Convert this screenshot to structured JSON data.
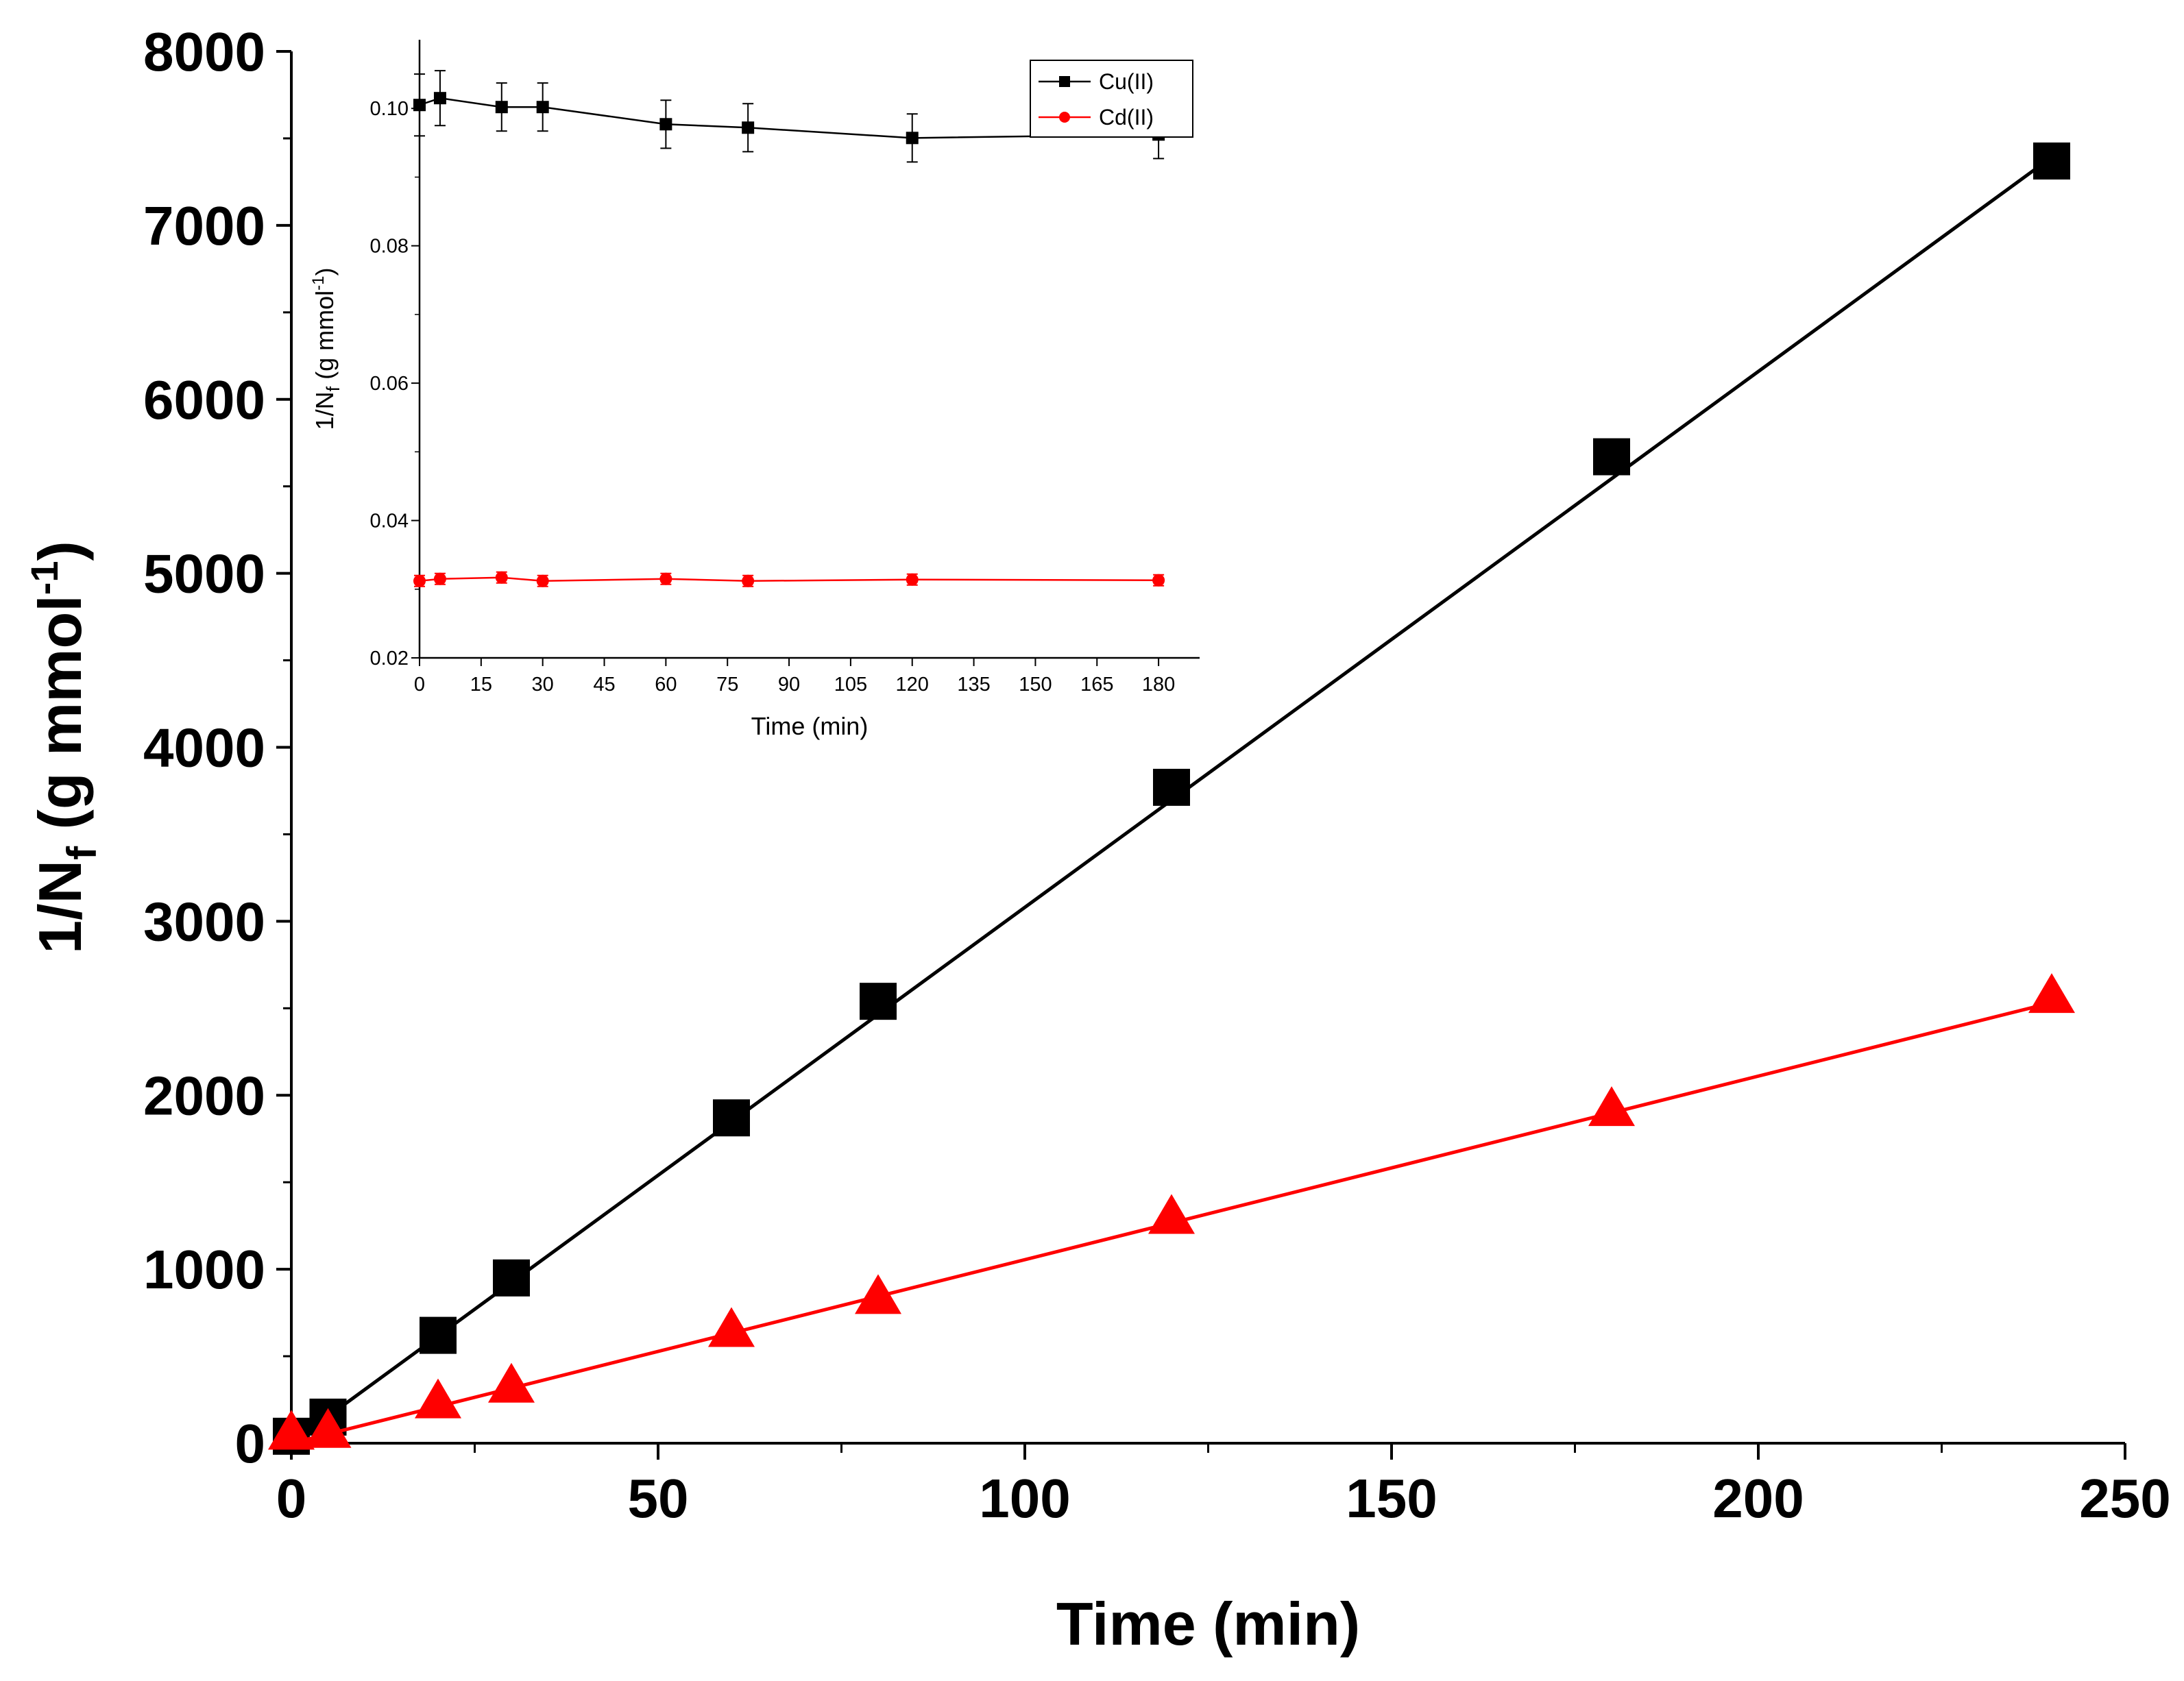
{
  "chart_data": [
    {
      "id": "main",
      "type": "scatter",
      "title": "",
      "xlabel": "Time (min)",
      "ylabel_main": "1/N",
      "ylabel_sub": "f",
      "ylabel_units": " (g mmol",
      "ylabel_sup": "-1",
      "ylabel_close": ")",
      "xlim": [
        0,
        250
      ],
      "ylim": [
        0,
        8000
      ],
      "xticks": [
        0,
        50,
        100,
        150,
        200,
        250
      ],
      "yticks": [
        0,
        1000,
        2000,
        3000,
        4000,
        5000,
        6000,
        7000,
        8000
      ],
      "x_minor_step": 25,
      "y_minor_step": 500,
      "grid": false,
      "series": [
        {
          "name": "Cu(II)",
          "color": "#000000",
          "marker": "square",
          "x": [
            0,
            5,
            20,
            30,
            60,
            80,
            120,
            180,
            240
          ],
          "y": [
            40,
            150,
            620,
            950,
            1870,
            2540,
            3770,
            5670,
            7370
          ],
          "fit": {
            "intercept": 0,
            "slope": 30.8
          }
        },
        {
          "name": "Cd(II)",
          "color": "#ff0000",
          "marker": "triangle",
          "x": [
            0,
            5,
            20,
            30,
            60,
            80,
            120,
            180,
            240
          ],
          "y": [
            50,
            60,
            230,
            320,
            640,
            830,
            1290,
            1910,
            2560
          ],
          "fit": {
            "intercept": 0,
            "slope": 10.55
          }
        }
      ]
    },
    {
      "id": "inset",
      "type": "line",
      "title": "",
      "xlabel": "Time (min)",
      "ylabel_main": "1/N",
      "ylabel_sub": "f",
      "ylabel_units": " (g mmol",
      "ylabel_sup": "-1",
      "ylabel_close": ")",
      "xlim": [
        0,
        190
      ],
      "ylim": [
        0.02,
        0.11
      ],
      "xticks": [
        0,
        15,
        30,
        45,
        60,
        75,
        90,
        105,
        120,
        135,
        150,
        165,
        180
      ],
      "yticks": [
        0.02,
        0.04,
        0.06,
        0.08,
        0.1
      ],
      "ytick_labels": [
        "0.02",
        "0.04",
        "0.06",
        "0.08",
        "0.10"
      ],
      "y_minor_step": 0.01,
      "grid": false,
      "legend": "top-right",
      "series": [
        {
          "name": "Cu(II)",
          "color": "#000000",
          "marker": "square",
          "x": [
            0,
            5,
            20,
            30,
            60,
            80,
            120,
            180
          ],
          "y": [
            0.1005,
            0.1015,
            0.1002,
            0.1002,
            0.0977,
            0.0972,
            0.0957,
            0.0962
          ],
          "err": [
            0.0045,
            0.004,
            0.0035,
            0.0035,
            0.0035,
            0.0035,
            0.0035,
            0.0035
          ]
        },
        {
          "name": "Cd(II)",
          "color": "#ff0000",
          "marker": "circle",
          "x": [
            0,
            5,
            20,
            30,
            60,
            80,
            120,
            180
          ],
          "y": [
            0.0312,
            0.0315,
            0.0317,
            0.0312,
            0.0315,
            0.0312,
            0.0314,
            0.0313
          ],
          "err": [
            0.0008,
            0.0008,
            0.0008,
            0.0008,
            0.0008,
            0.0008,
            0.0008,
            0.0008
          ]
        }
      ]
    }
  ]
}
